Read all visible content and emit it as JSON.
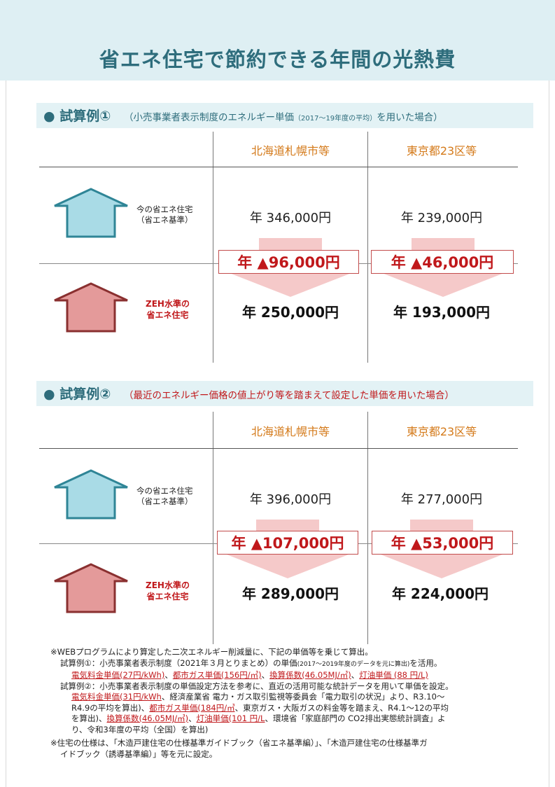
{
  "title": "省エネ住宅で節約できる年間の光熱費",
  "colors": {
    "accent": "#2e6d7c",
    "orange": "#d47a1a",
    "red": "#c0181b",
    "house_current": "#a9dbe6",
    "house_zeh": "#e49a9a"
  },
  "labels": {
    "current_house": [
      "今の省エネ住宅",
      "（省エネ基準）"
    ],
    "zeh_house": [
      "ZEH水準の",
      "省エネ住宅"
    ]
  },
  "case1": {
    "heading": "● 試算例①",
    "sub_a": "（小売事業者表示制度のエネルギー単価",
    "sub_small": "（2017～19年度の平均）",
    "sub_b": "を用いた場合）",
    "col1": "北海道札幌市等",
    "col2": "東京都23区等",
    "current1": "年 346,000円",
    "current2": "年 239,000円",
    "diff1": "年 ▲96,000円",
    "diff2": "年 ▲46,000円",
    "zeh1": "年 250,000円",
    "zeh2": "年 193,000円"
  },
  "case2": {
    "heading": "● 試算例②",
    "sub": "（最近のエネルギー価格の値上がり等を踏まえて設定した単価を用いた場合）",
    "col1": "北海道札幌市等",
    "col2": "東京都23区等",
    "current1": "年 396,000円",
    "current2": "年 277,000円",
    "diff1": "年 ▲107,000円",
    "diff2": "年 ▲53,000円",
    "zeh1": "年 289,000円",
    "zeh2": "年 224,000円"
  },
  "notes": {
    "line1": "※WEBプログラムにより算定した二次エネルギー削減量に、下記の単価等を乗じて算出。",
    "ex1_a": "試算例①：小売事業者表示制度（2021年３月とりまとめ）の単価",
    "ex1_small": "(2017～2019年度のデータを元に算出)",
    "ex1_b": "を活用。",
    "ex1_r1": "電気料金単価(27円/kWh)",
    "ex1_r2": "都市ガス単価(156円/㎥)",
    "ex1_r3": "換算係数(46.05MJ/㎥)",
    "ex1_r4": "灯油単価 (88 円/L)",
    "sep": "、",
    "ex2_l1": "試算例②：小売事業者表示制度の単価設定方法を参考に、直近の活用可能な統計データを用いて単価を設定。",
    "ex2_r1": "電気料金単価(31円/kWh",
    "ex2_t1": "、経済産業省 電力・ガス取引監視等委員会「電力取引の状況」より、R3.10～",
    "ex2_t2": "R4.9の平均を算出)、",
    "ex2_r2": "都市ガス単価(184円/㎥",
    "ex2_t3": "、東京ガス・大阪ガスの料金等を踏まえ、R4.1～12の平均",
    "ex2_t4": "を算出)、",
    "ex2_r3": "換算係数(46.05MJ/㎥)",
    "ex2_r4": "灯油単価(101 円/L",
    "ex2_t5": "、環境省「家庭部門の CO2排出実態統計調査」よ",
    "ex2_t6": "り、令和3年度の平均（全国）を算出)",
    "spec1": "※住宅の仕様は、「木造戸建住宅の仕様基準ガイドブック（省エネ基準編）」、「木造戸建住宅の仕様基準ガ",
    "spec2": "イドブック（誘導基準編）」等を元に設定。"
  }
}
